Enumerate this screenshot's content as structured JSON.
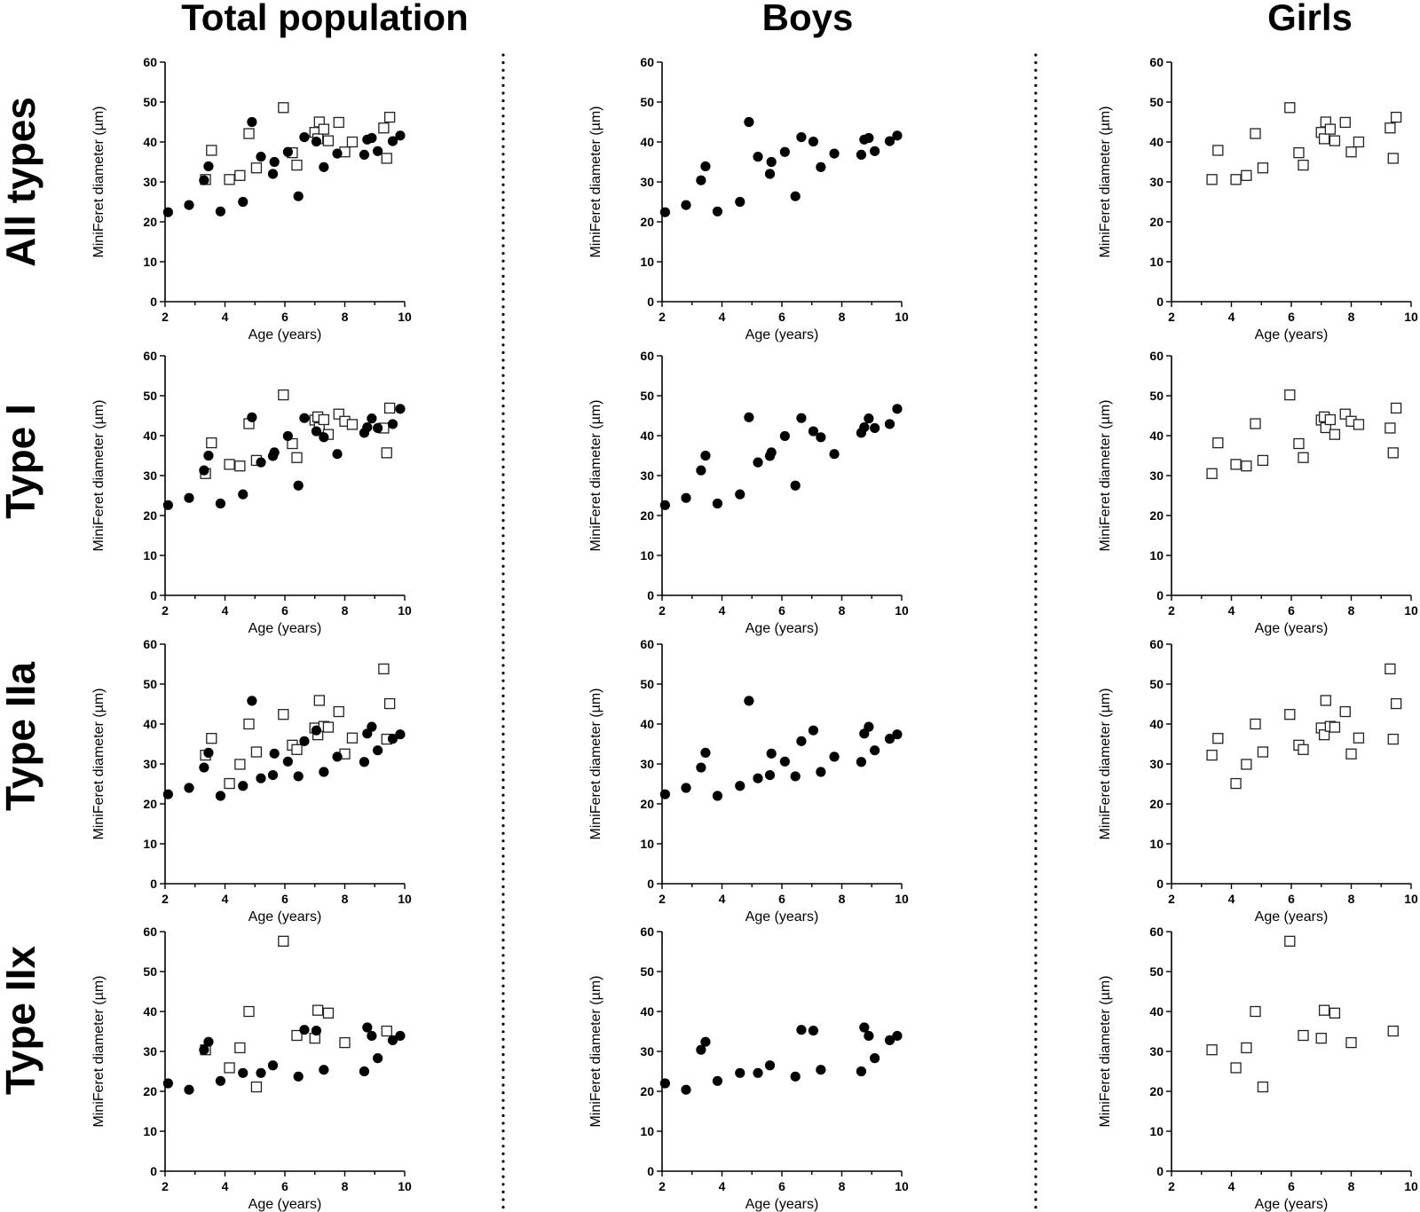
{
  "column_titles": [
    "Total population",
    "Boys",
    "Girls"
  ],
  "row_titles": [
    "All types",
    "Type I",
    "Type IIa",
    "Type IIx"
  ],
  "x_axis_label": "Age (years)",
  "y_axis_label": "MiniFeret diameter (µm)",
  "style": {
    "boy_marker_color": "#000000",
    "girl_marker_color": "#ffffff",
    "girl_marker_edge": "#222222"
  },
  "chart_data": [
    {
      "type": "scatter",
      "fiber_type": "All types",
      "xlim": [
        2,
        10
      ],
      "ylim": [
        0,
        60
      ],
      "xticks": [
        2,
        4,
        6,
        8,
        10
      ],
      "yticks": [
        0,
        10,
        20,
        30,
        40,
        50,
        60
      ],
      "boys": [
        [
          2.1,
          22.4
        ],
        [
          2.8,
          24.2
        ],
        [
          3.3,
          30.4
        ],
        [
          3.45,
          33.9
        ],
        [
          3.85,
          22.6
        ],
        [
          4.6,
          25.0
        ],
        [
          4.9,
          45.0
        ],
        [
          5.2,
          36.3
        ],
        [
          5.6,
          32.0
        ],
        [
          5.65,
          35.0
        ],
        [
          6.1,
          37.5
        ],
        [
          6.45,
          26.4
        ],
        [
          6.65,
          41.2
        ],
        [
          7.05,
          40.1
        ],
        [
          7.3,
          33.7
        ],
        [
          7.75,
          37.1
        ],
        [
          8.65,
          36.8
        ],
        [
          8.75,
          40.6
        ],
        [
          8.9,
          41.0
        ],
        [
          9.1,
          37.7
        ],
        [
          9.6,
          40.2
        ],
        [
          9.85,
          41.6
        ]
      ],
      "girls": [
        [
          3.35,
          30.6
        ],
        [
          3.55,
          37.9
        ],
        [
          4.15,
          30.6
        ],
        [
          4.5,
          31.6
        ],
        [
          4.8,
          42.1
        ],
        [
          5.05,
          33.5
        ],
        [
          5.95,
          48.6
        ],
        [
          6.25,
          37.3
        ],
        [
          6.4,
          34.2
        ],
        [
          7.0,
          42.4
        ],
        [
          7.1,
          40.8
        ],
        [
          7.15,
          45.0
        ],
        [
          7.3,
          43.2
        ],
        [
          7.45,
          40.3
        ],
        [
          7.8,
          44.9
        ],
        [
          8.0,
          37.5
        ],
        [
          8.25,
          40.0
        ],
        [
          9.3,
          43.5
        ],
        [
          9.4,
          35.9
        ],
        [
          9.5,
          46.2
        ]
      ]
    },
    {
      "type": "scatter",
      "fiber_type": "Type I",
      "xlim": [
        2,
        10
      ],
      "ylim": [
        0,
        60
      ],
      "xticks": [
        2,
        4,
        6,
        8,
        10
      ],
      "yticks": [
        0,
        10,
        20,
        30,
        40,
        50,
        60
      ],
      "boys": [
        [
          2.1,
          22.6
        ],
        [
          2.8,
          24.4
        ],
        [
          3.3,
          31.3
        ],
        [
          3.45,
          35.0
        ],
        [
          3.85,
          23.0
        ],
        [
          4.6,
          25.3
        ],
        [
          4.9,
          44.6
        ],
        [
          5.2,
          33.3
        ],
        [
          5.6,
          34.9
        ],
        [
          5.65,
          35.8
        ],
        [
          6.1,
          39.9
        ],
        [
          6.45,
          27.5
        ],
        [
          6.65,
          44.4
        ],
        [
          7.05,
          41.1
        ],
        [
          7.3,
          39.6
        ],
        [
          7.75,
          35.4
        ],
        [
          8.65,
          40.7
        ],
        [
          8.75,
          42.1
        ],
        [
          8.9,
          44.3
        ],
        [
          9.1,
          41.9
        ],
        [
          9.6,
          42.9
        ],
        [
          9.85,
          46.7
        ]
      ],
      "girls": [
        [
          3.35,
          30.5
        ],
        [
          3.55,
          38.2
        ],
        [
          4.15,
          32.8
        ],
        [
          4.5,
          32.4
        ],
        [
          4.8,
          43.0
        ],
        [
          5.05,
          33.8
        ],
        [
          5.95,
          50.2
        ],
        [
          6.25,
          38.0
        ],
        [
          6.4,
          34.5
        ],
        [
          7.0,
          43.9
        ],
        [
          7.1,
          44.7
        ],
        [
          7.15,
          42.0
        ],
        [
          7.3,
          44.0
        ],
        [
          7.45,
          40.3
        ],
        [
          7.8,
          45.4
        ],
        [
          8.0,
          43.6
        ],
        [
          8.25,
          42.8
        ],
        [
          9.3,
          41.9
        ],
        [
          9.4,
          35.7
        ],
        [
          9.5,
          46.9
        ]
      ]
    },
    {
      "type": "scatter",
      "fiber_type": "Type IIa",
      "xlim": [
        2,
        10
      ],
      "ylim": [
        0,
        60
      ],
      "xticks": [
        2,
        4,
        6,
        8,
        10
      ],
      "yticks": [
        0,
        10,
        20,
        30,
        40,
        50,
        60
      ],
      "boys": [
        [
          2.1,
          22.4
        ],
        [
          2.8,
          24.0
        ],
        [
          3.3,
          29.1
        ],
        [
          3.45,
          32.8
        ],
        [
          3.85,
          22.0
        ],
        [
          4.6,
          24.5
        ],
        [
          4.9,
          45.8
        ],
        [
          5.2,
          26.4
        ],
        [
          5.6,
          27.2
        ],
        [
          5.65,
          32.6
        ],
        [
          6.1,
          30.6
        ],
        [
          6.45,
          26.9
        ],
        [
          6.65,
          35.7
        ],
        [
          7.05,
          38.4
        ],
        [
          7.3,
          28.0
        ],
        [
          7.75,
          31.8
        ],
        [
          8.65,
          30.5
        ],
        [
          8.75,
          37.6
        ],
        [
          8.9,
          39.3
        ],
        [
          9.1,
          33.4
        ],
        [
          9.6,
          36.3
        ],
        [
          9.85,
          37.4
        ]
      ],
      "girls": [
        [
          3.35,
          32.2
        ],
        [
          3.55,
          36.4
        ],
        [
          4.15,
          25.1
        ],
        [
          4.5,
          29.9
        ],
        [
          4.8,
          40.0
        ],
        [
          5.05,
          33.0
        ],
        [
          5.95,
          42.4
        ],
        [
          6.25,
          34.7
        ],
        [
          6.4,
          33.6
        ],
        [
          7.0,
          39.0
        ],
        [
          7.1,
          37.3
        ],
        [
          7.15,
          45.9
        ],
        [
          7.3,
          39.4
        ],
        [
          7.45,
          39.2
        ],
        [
          7.8,
          43.1
        ],
        [
          8.0,
          32.5
        ],
        [
          8.25,
          36.5
        ],
        [
          9.3,
          53.8
        ],
        [
          9.4,
          36.2
        ],
        [
          9.5,
          45.1
        ]
      ]
    },
    {
      "type": "scatter",
      "fiber_type": "Type IIx",
      "xlim": [
        2,
        10
      ],
      "ylim": [
        0,
        60
      ],
      "xticks": [
        2,
        4,
        6,
        8,
        10
      ],
      "yticks": [
        0,
        10,
        20,
        30,
        40,
        50,
        60
      ],
      "boys": [
        [
          2.1,
          22.0
        ],
        [
          2.8,
          20.4
        ],
        [
          3.3,
          30.4
        ],
        [
          3.45,
          32.4
        ],
        [
          3.85,
          22.6
        ],
        [
          4.6,
          24.6
        ],
        [
          5.2,
          24.6
        ],
        [
          5.6,
          26.5
        ],
        [
          6.45,
          23.7
        ],
        [
          6.65,
          35.4
        ],
        [
          7.05,
          35.2
        ],
        [
          7.3,
          25.4
        ],
        [
          8.65,
          25.0
        ],
        [
          8.75,
          36.0
        ],
        [
          8.9,
          33.9
        ],
        [
          9.1,
          28.3
        ],
        [
          9.6,
          32.8
        ],
        [
          9.85,
          33.9
        ]
      ],
      "girls": [
        [
          3.35,
          30.4
        ],
        [
          4.15,
          25.9
        ],
        [
          4.5,
          30.9
        ],
        [
          4.8,
          40.0
        ],
        [
          5.05,
          21.1
        ],
        [
          5.95,
          57.6
        ],
        [
          6.4,
          34.0
        ],
        [
          7.0,
          33.3
        ],
        [
          7.1,
          40.3
        ],
        [
          7.45,
          39.6
        ],
        [
          8.0,
          32.2
        ],
        [
          9.4,
          35.1
        ]
      ]
    }
  ]
}
